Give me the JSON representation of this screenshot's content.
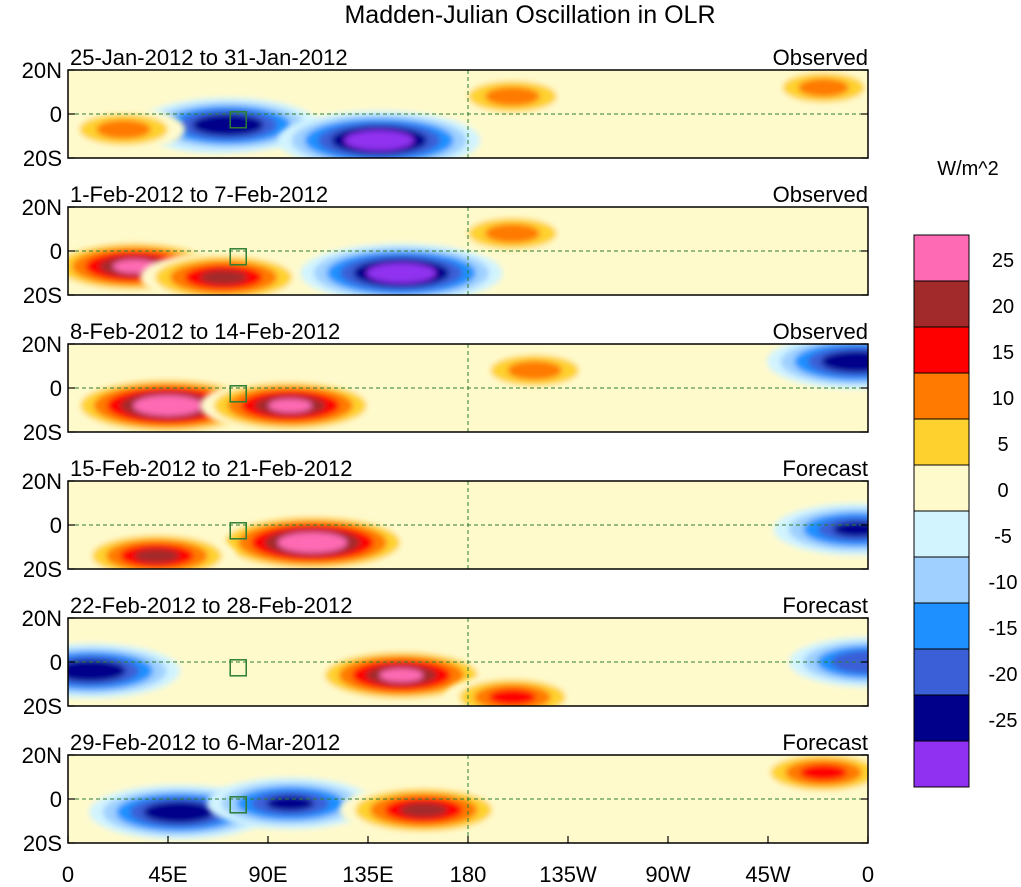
{
  "chart_data": {
    "type": "heatmap",
    "title": "Madden-Julian Oscillation in OLR",
    "units_label": "W/m^2",
    "lat_ticks": [
      "20N",
      "0",
      "20S"
    ],
    "lon_ticks": [
      "0",
      "45E",
      "90E",
      "135E",
      "180",
      "135W",
      "90W",
      "45W",
      "0"
    ],
    "lon_range_deg": [
      0,
      360
    ],
    "lat_range_deg": [
      -20,
      20
    ],
    "colorbar": {
      "levels": [
        25,
        20,
        15,
        10,
        5,
        0,
        -5,
        -10,
        -15,
        -20,
        -25
      ],
      "colors": [
        "#ff6ab4",
        "#a32a2a",
        "#ff0000",
        "#ff7a00",
        "#ffd12e",
        "#fffacc",
        "#d2f4ff",
        "#9fd0ff",
        "#1e90ff",
        "#3b5fd6",
        "#00008b",
        "#9030f0"
      ]
    },
    "panels": [
      {
        "period": "25-Jan-2012 to 31-Jan-2012",
        "kind": "Observed",
        "anomalies": [
          {
            "lon": 65,
            "lat": -7,
            "value": -15
          },
          {
            "lon": 72,
            "lat": -5,
            "value": -25
          },
          {
            "lon": 140,
            "lat": -12,
            "value": -30
          },
          {
            "lon": 25,
            "lat": -7,
            "value": 12
          },
          {
            "lon": 200,
            "lat": 8,
            "value": 12
          },
          {
            "lon": 340,
            "lat": 12,
            "value": 10
          }
        ]
      },
      {
        "period": "1-Feb-2012 to 7-Feb-2012",
        "kind": "Observed",
        "anomalies": [
          {
            "lon": 30,
            "lat": -7,
            "value": 25
          },
          {
            "lon": 70,
            "lat": -12,
            "value": 22
          },
          {
            "lon": 150,
            "lat": -10,
            "value": -30
          },
          {
            "lon": 200,
            "lat": 8,
            "value": 12
          }
        ]
      },
      {
        "period": "8-Feb-2012 to 14-Feb-2012",
        "kind": "Observed",
        "anomalies": [
          {
            "lon": 45,
            "lat": -8,
            "value": 30
          },
          {
            "lon": 100,
            "lat": -8,
            "value": 25
          },
          {
            "lon": 210,
            "lat": 8,
            "value": 12
          },
          {
            "lon": 355,
            "lat": 12,
            "value": -25
          }
        ]
      },
      {
        "period": "15-Feb-2012 to 21-Feb-2012",
        "kind": "Forecast",
        "anomalies": [
          {
            "lon": 110,
            "lat": -8,
            "value": 30
          },
          {
            "lon": 40,
            "lat": -14,
            "value": 20
          },
          {
            "lon": 355,
            "lat": -2,
            "value": -22
          }
        ]
      },
      {
        "period": "22-Feb-2012 to 28-Feb-2012",
        "kind": "Forecast",
        "anomalies": [
          {
            "lon": 10,
            "lat": -4,
            "value": -25
          },
          {
            "lon": 150,
            "lat": -6,
            "value": 25
          },
          {
            "lon": 200,
            "lat": -16,
            "value": 15
          },
          {
            "lon": 360,
            "lat": 0,
            "value": -20
          }
        ]
      },
      {
        "period": "29-Feb-2012 to 6-Mar-2012",
        "kind": "Forecast",
        "anomalies": [
          {
            "lon": 50,
            "lat": -6,
            "value": -25
          },
          {
            "lon": 100,
            "lat": -2,
            "value": -22
          },
          {
            "lon": 160,
            "lat": -5,
            "value": 22
          },
          {
            "lon": 340,
            "lat": 12,
            "value": 15
          }
        ]
      }
    ]
  }
}
